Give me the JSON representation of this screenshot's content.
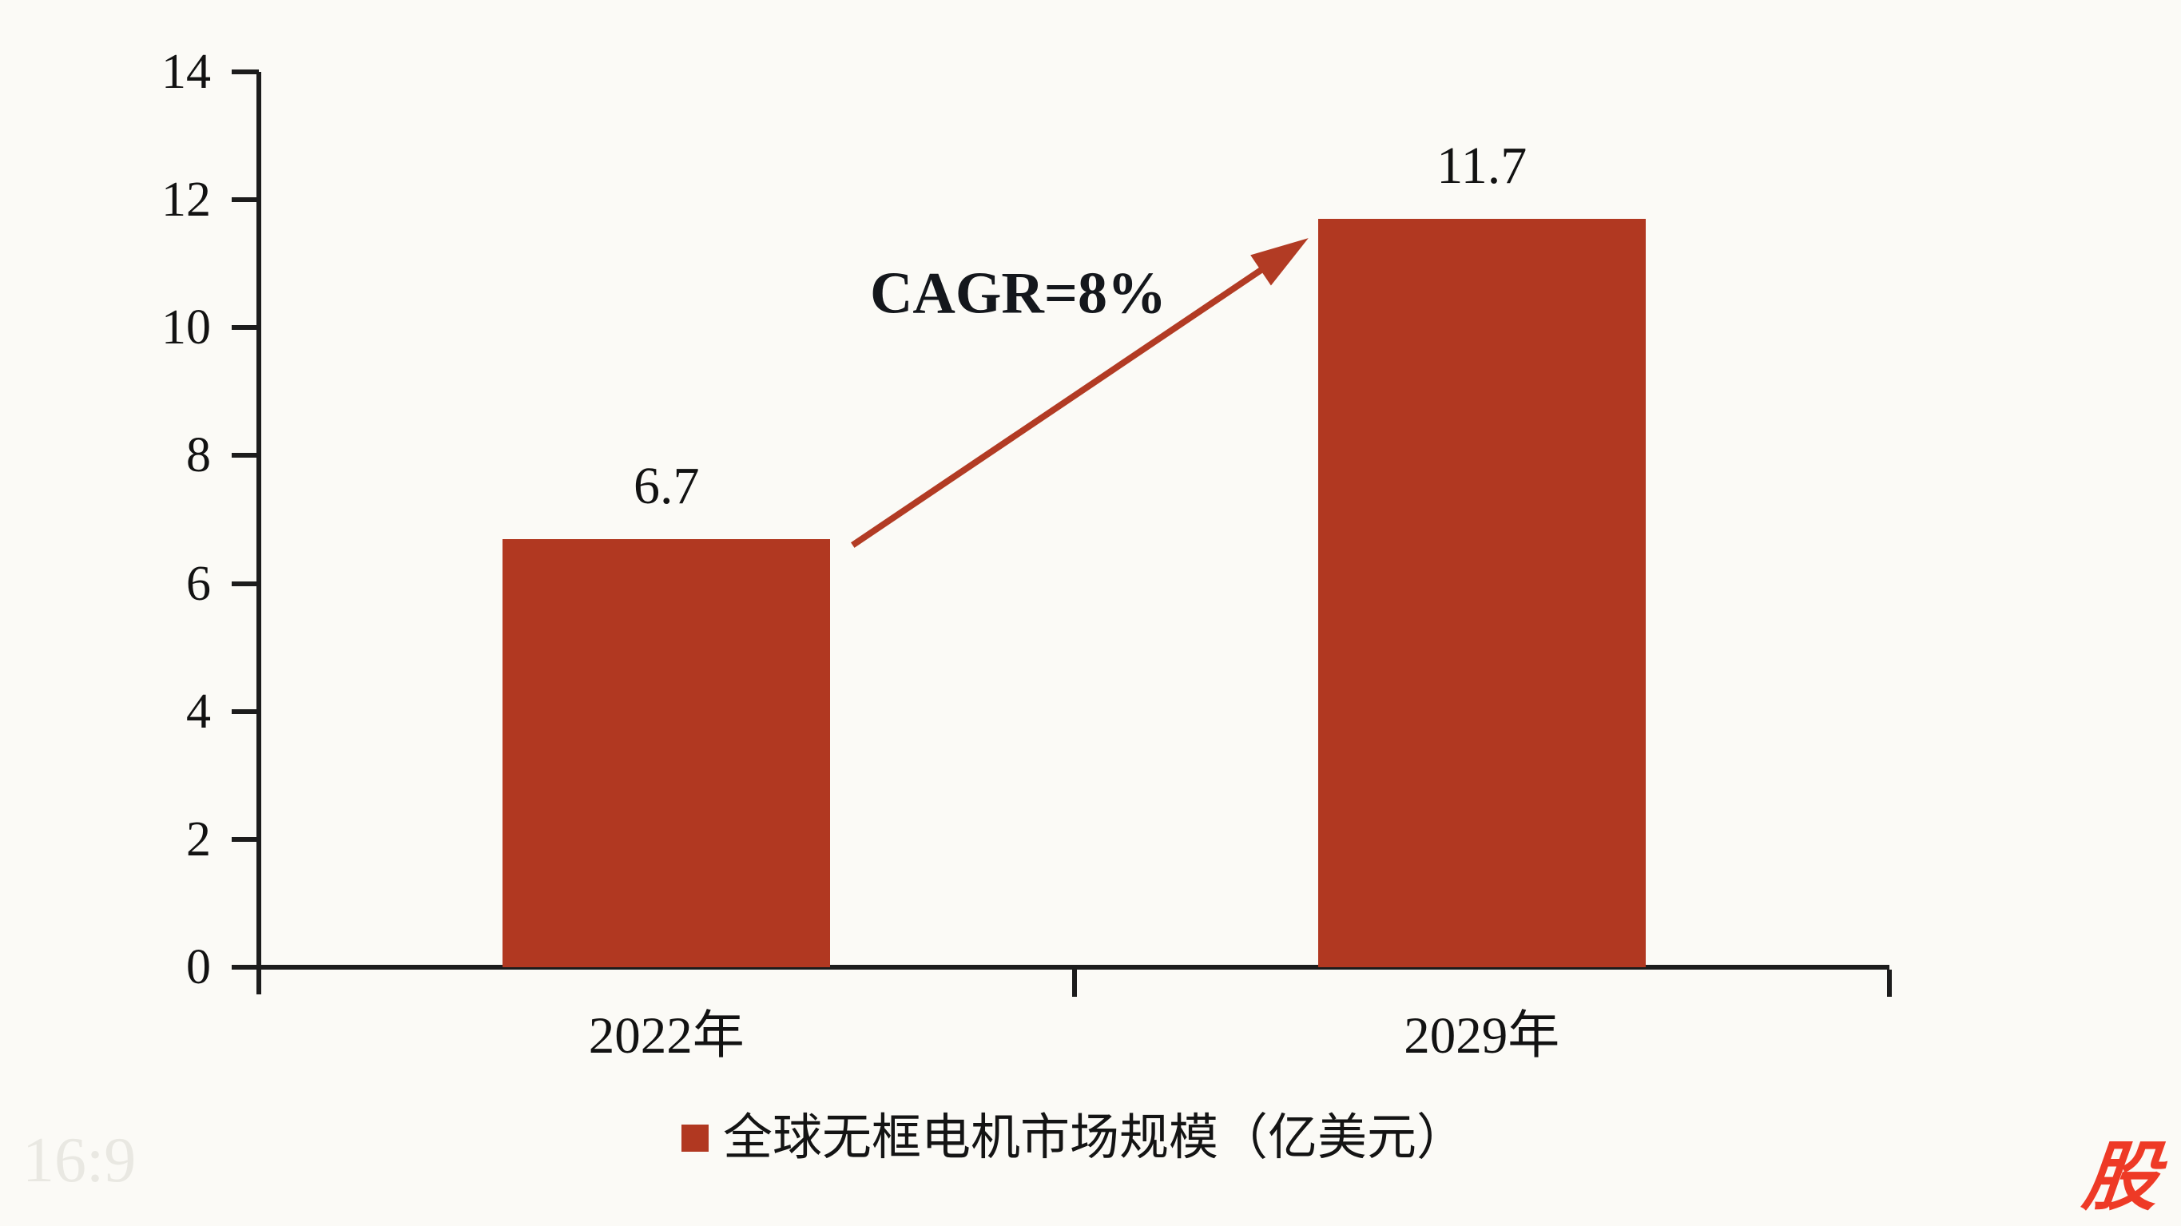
{
  "chart_data": {
    "type": "bar",
    "categories": [
      "2022年",
      "2029年"
    ],
    "series": [
      {
        "name": "全球无框电机市场规模（亿美元）",
        "values": [
          6.7,
          11.7
        ],
        "data_labels": [
          "6.7",
          "11.7"
        ]
      }
    ],
    "title": "",
    "xlabel": "",
    "ylabel": "",
    "ylim": [
      0,
      14
    ],
    "yticks": [
      0,
      2,
      4,
      6,
      8,
      10,
      12,
      14
    ],
    "ytick_labels": [
      "0",
      "2",
      "4",
      "6",
      "8",
      "10",
      "12",
      "14"
    ],
    "grid": false,
    "legend_position": "bottom",
    "annotation": "CAGR=8%",
    "colors": {
      "bar": "#B13821",
      "arrow": "#B23B24",
      "axis": "#1C1C1C",
      "text": "#121212",
      "background": "#FBFAF6"
    }
  },
  "watermark": {
    "label": "16:9"
  },
  "logo": {
    "text": "股",
    "color": "#EE3A26"
  }
}
